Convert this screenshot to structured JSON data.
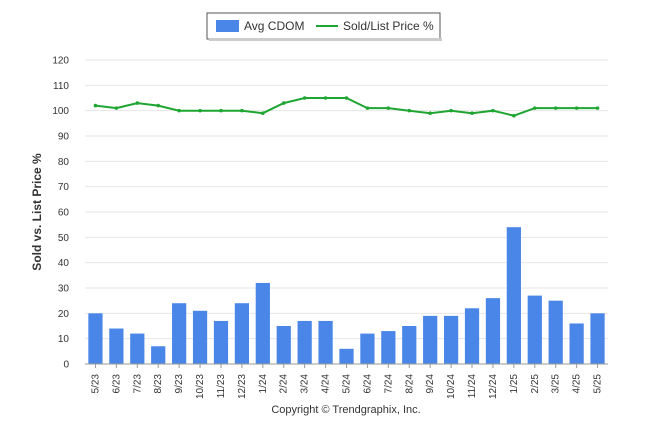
{
  "chart_data": {
    "type": "bar",
    "title": "",
    "xlabel": "",
    "ylabel": "Sold vs. List Price %",
    "ylim": [
      0,
      120
    ],
    "yticks": [
      0,
      10,
      20,
      30,
      40,
      50,
      60,
      70,
      80,
      90,
      100,
      110,
      120
    ],
    "grid": true,
    "legend_position": "top-center",
    "categories": [
      "5/23",
      "6/23",
      "7/23",
      "8/23",
      "9/23",
      "10/23",
      "11/23",
      "12/23",
      "1/24",
      "2/24",
      "3/24",
      "4/24",
      "5/24",
      "6/24",
      "7/24",
      "8/24",
      "9/24",
      "10/24",
      "11/24",
      "12/24",
      "1/25",
      "2/25",
      "3/25",
      "4/25",
      "5/25"
    ],
    "series": [
      {
        "name": "Avg CDOM",
        "kind": "bar",
        "color": "#4a86e8",
        "values": [
          20,
          14,
          12,
          7,
          24,
          21,
          17,
          24,
          32,
          15,
          17,
          17,
          6,
          12,
          13,
          15,
          19,
          19,
          22,
          26,
          54,
          27,
          25,
          16,
          20
        ]
      },
      {
        "name": "Sold/List Price %",
        "kind": "line",
        "color": "#1fa531",
        "values": [
          102,
          101,
          103,
          102,
          100,
          100,
          100,
          100,
          99,
          103,
          105,
          105,
          105,
          101,
          101,
          100,
          99,
          100,
          99,
          100,
          98,
          101,
          101,
          101,
          101
        ]
      }
    ]
  },
  "footer": {
    "copyright": "Copyright © Trendgraphix, Inc."
  }
}
